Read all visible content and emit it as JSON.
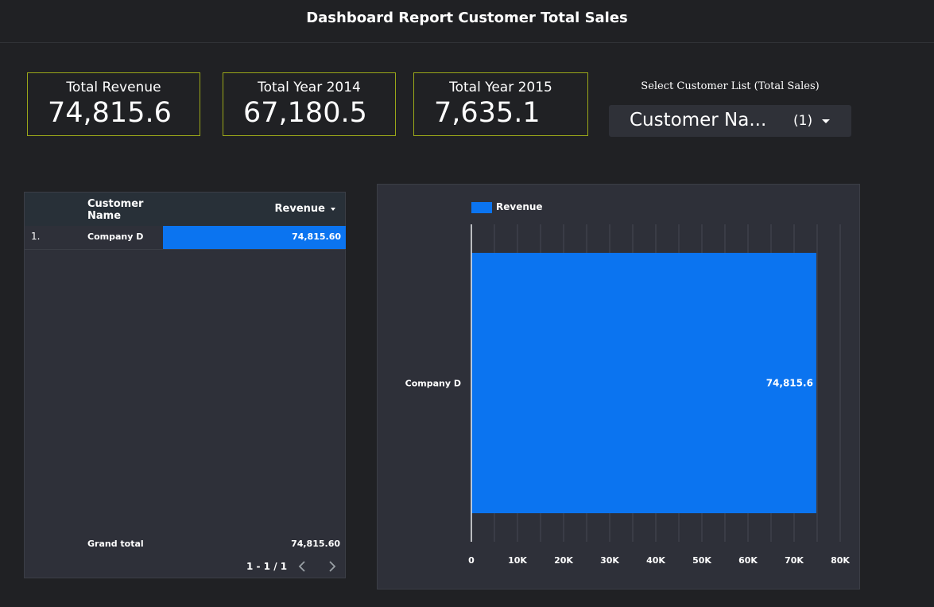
{
  "header": {
    "title": "Dashboard Report Customer  Total Sales"
  },
  "kpis": [
    {
      "label": "Total Revenue",
      "value": "74,815.6"
    },
    {
      "label": "Total Year 2014",
      "value": "67,180.5"
    },
    {
      "label": "Total Year 2015",
      "value": "7,635.1"
    }
  ],
  "filter": {
    "label": "Select Customer List (Total Sales)",
    "value": "Customer Na...",
    "count": "(1)"
  },
  "table": {
    "columns": {
      "name": "Customer Name",
      "revenue": "Revenue"
    },
    "rows": [
      {
        "index": "1.",
        "name": "Company D",
        "revenue": "74,815.60",
        "bar_fraction": 1.0
      }
    ],
    "grand_total_label": "Grand total",
    "grand_total_value": "74,815.60",
    "pagination": "1 - 1 / 1"
  },
  "colors": {
    "accent": "#0b74f0",
    "kpi_border": "#9aa719",
    "panel": "#2e3039",
    "bg": "#202124"
  },
  "chart_data": {
    "type": "bar",
    "orientation": "horizontal",
    "categories": [
      "Company D"
    ],
    "series": [
      {
        "name": "Revenue",
        "values": [
          74815.6
        ]
      }
    ],
    "data_labels": [
      "74,815.6"
    ],
    "xlim": [
      0,
      80000
    ],
    "xticks": [
      0,
      10000,
      20000,
      30000,
      40000,
      50000,
      60000,
      70000,
      80000
    ],
    "xtick_labels": [
      "0",
      "10K",
      "20K",
      "30K",
      "40K",
      "50K",
      "60K",
      "70K",
      "80K"
    ],
    "legend": "top-left",
    "grid": true
  }
}
